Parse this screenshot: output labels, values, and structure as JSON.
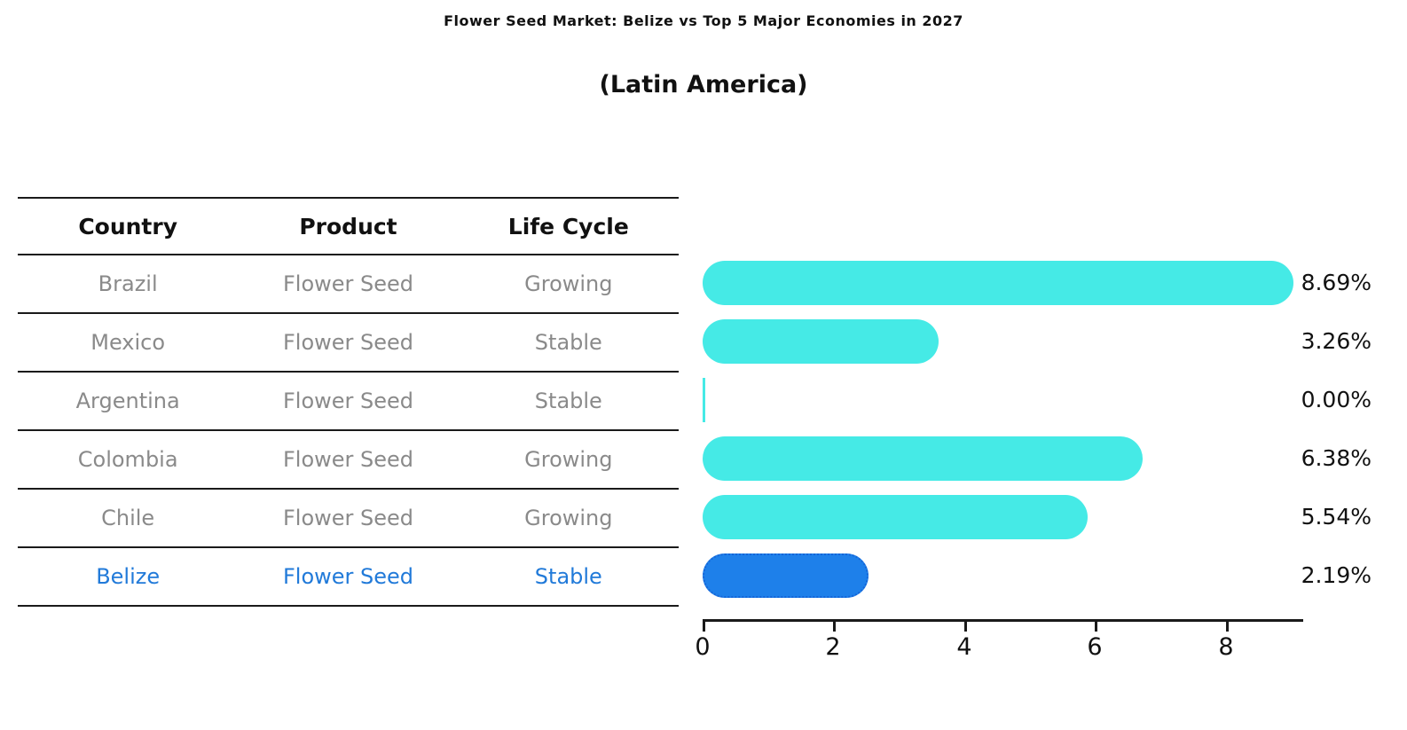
{
  "title": "Flower Seed Market: Belize vs Top 5 Major Economies in 2027",
  "subtitle": "(Latin America)",
  "table": {
    "headers": [
      "Country",
      "Product",
      "Life Cycle"
    ],
    "rows": [
      {
        "country": "Brazil",
        "product": "Flower Seed",
        "life_cycle": "Growing",
        "highlight": false
      },
      {
        "country": "Mexico",
        "product": "Flower Seed",
        "life_cycle": "Stable",
        "highlight": false
      },
      {
        "country": "Argentina",
        "product": "Flower Seed",
        "life_cycle": "Stable",
        "highlight": false
      },
      {
        "country": "Colombia",
        "product": "Flower Seed",
        "life_cycle": "Growing",
        "highlight": false
      },
      {
        "country": "Chile",
        "product": "Flower Seed",
        "life_cycle": "Growing",
        "highlight": false
      },
      {
        "country": "Belize",
        "product": "Flower Seed",
        "life_cycle": "Stable",
        "highlight": true
      }
    ]
  },
  "chart_data": {
    "type": "bar",
    "orientation": "horizontal",
    "title": "Flower Seed Market: Belize vs Top 5 Major Economies in 2027 (Latin America)",
    "categories": [
      "Brazil",
      "Mexico",
      "Argentina",
      "Colombia",
      "Chile",
      "Belize"
    ],
    "values": [
      8.69,
      3.26,
      0.0,
      6.38,
      5.54,
      2.19
    ],
    "value_labels": [
      "8.69%",
      "3.26%",
      "0.00%",
      "6.38%",
      "5.54%",
      "2.19%"
    ],
    "xlabel": "",
    "ylabel": "",
    "xlim": [
      0,
      9.2
    ],
    "xticks": [
      0,
      2,
      4,
      6,
      8
    ],
    "grid": false,
    "legend": false,
    "highlight_index": 5,
    "colors": {
      "bar": "#45eae6",
      "highlight_bar": "#1e80ea",
      "highlight_border": "#1565d8",
      "highlight_text": "#217ad9",
      "table_text": "#8a8a8a",
      "axis": "#1a1a1a"
    }
  }
}
